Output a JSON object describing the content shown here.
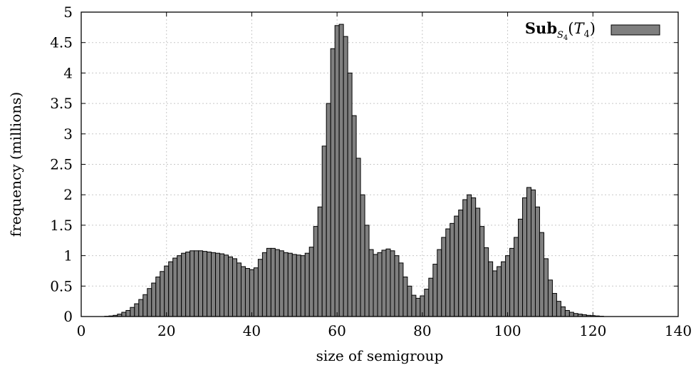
{
  "chart_data": {
    "type": "bar",
    "title": "",
    "xlabel": "size of semigroup",
    "ylabel": "frequency (millions)",
    "xlim": [
      0,
      140
    ],
    "ylim": [
      0,
      5
    ],
    "xticks": [
      0,
      20,
      40,
      60,
      80,
      100,
      120,
      140
    ],
    "yticks": [
      "0",
      "0.5",
      "1",
      "1.5",
      "2",
      "2.5",
      "3",
      "3.5",
      "4",
      "4.5",
      "5"
    ],
    "grid": true,
    "legend_position": "top-right",
    "series": [
      {
        "name": "Sub_S4(T4)",
        "legend_parts": {
          "main": "Sub",
          "sub_script": "S",
          "sub_index": "4",
          "arg_open": "(",
          "arg": "T",
          "arg_index": "4",
          "arg_close": ")"
        },
        "color": "#7f7f7f",
        "x": [
          1,
          2,
          3,
          4,
          5,
          6,
          7,
          8,
          9,
          10,
          11,
          12,
          13,
          14,
          15,
          16,
          17,
          18,
          19,
          20,
          21,
          22,
          23,
          24,
          25,
          26,
          27,
          28,
          29,
          30,
          31,
          32,
          33,
          34,
          35,
          36,
          37,
          38,
          39,
          40,
          41,
          42,
          43,
          44,
          45,
          46,
          47,
          48,
          49,
          50,
          51,
          52,
          53,
          54,
          55,
          56,
          57,
          58,
          59,
          60,
          61,
          62,
          63,
          64,
          65,
          66,
          67,
          68,
          69,
          70,
          71,
          72,
          73,
          74,
          75,
          76,
          77,
          78,
          79,
          80,
          81,
          82,
          83,
          84,
          85,
          86,
          87,
          88,
          89,
          90,
          91,
          92,
          93,
          94,
          95,
          96,
          97,
          98,
          99,
          100,
          101,
          102,
          103,
          104,
          105,
          106,
          107,
          108,
          109,
          110,
          111,
          112,
          113,
          114,
          115,
          116,
          117,
          118,
          119,
          120,
          121,
          122,
          123,
          124,
          125,
          126,
          127,
          128,
          129,
          130,
          131,
          132,
          133,
          134,
          135,
          136,
          137,
          138,
          139
        ],
        "values": [
          0.0,
          0.0,
          0.0,
          0.0,
          0.0,
          0.005,
          0.01,
          0.02,
          0.04,
          0.07,
          0.1,
          0.15,
          0.21,
          0.28,
          0.36,
          0.46,
          0.55,
          0.65,
          0.74,
          0.83,
          0.9,
          0.96,
          1.0,
          1.04,
          1.06,
          1.08,
          1.08,
          1.08,
          1.07,
          1.06,
          1.05,
          1.04,
          1.03,
          1.01,
          0.98,
          0.95,
          0.88,
          0.82,
          0.79,
          0.77,
          0.8,
          0.94,
          1.05,
          1.12,
          1.12,
          1.1,
          1.08,
          1.05,
          1.04,
          1.02,
          1.01,
          1.0,
          1.04,
          1.14,
          1.48,
          1.8,
          2.8,
          3.5,
          4.4,
          4.78,
          4.8,
          4.6,
          4.0,
          3.3,
          2.6,
          2.0,
          1.5,
          1.1,
          1.02,
          1.05,
          1.09,
          1.11,
          1.08,
          1.0,
          0.88,
          0.65,
          0.5,
          0.35,
          0.3,
          0.34,
          0.45,
          0.63,
          0.86,
          1.1,
          1.3,
          1.44,
          1.53,
          1.65,
          1.75,
          1.92,
          2.0,
          1.95,
          1.78,
          1.48,
          1.13,
          0.9,
          0.75,
          0.82,
          0.9,
          1.0,
          1.12,
          1.3,
          1.6,
          1.95,
          2.12,
          2.08,
          1.8,
          1.38,
          0.95,
          0.6,
          0.38,
          0.25,
          0.16,
          0.1,
          0.07,
          0.05,
          0.04,
          0.03,
          0.02,
          0.015,
          0.01,
          0.005,
          0.0,
          0.0,
          0.0,
          0.0,
          0.0,
          0.0,
          0.0,
          0.0,
          0.0,
          0.0,
          0.0,
          0.0,
          0.0,
          0.0,
          0.0,
          0.0,
          0.0
        ]
      }
    ]
  }
}
